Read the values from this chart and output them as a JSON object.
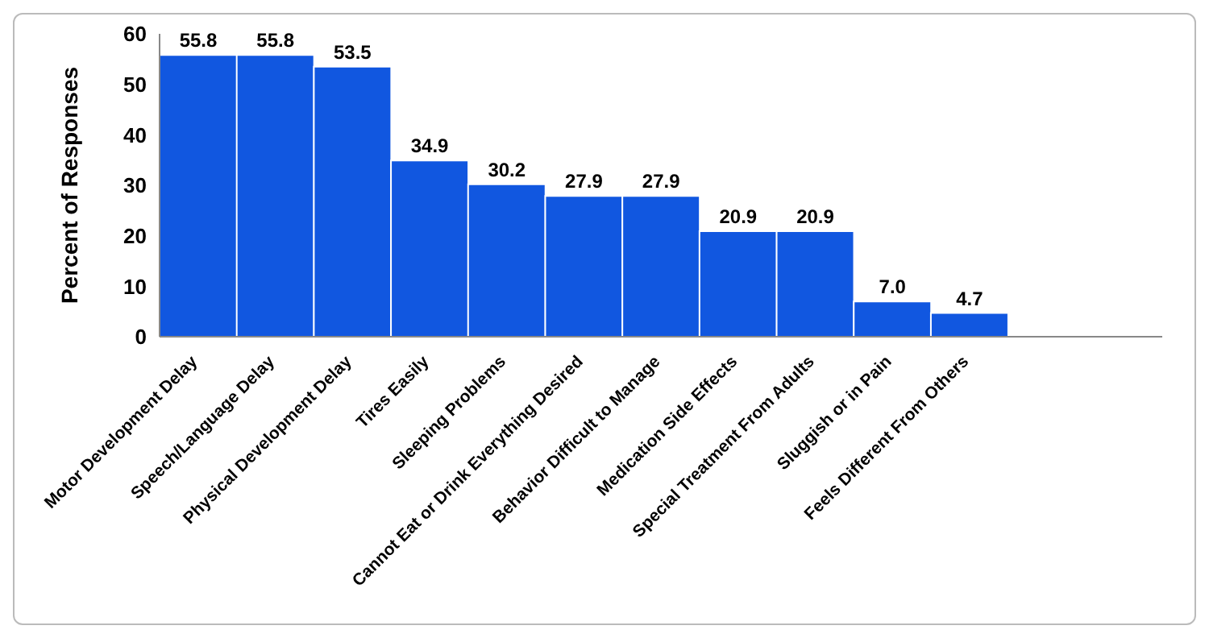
{
  "chart_data": {
    "type": "bar",
    "ylabel": "Percent of Responses",
    "categories": [
      "Motor Development Delay",
      "Speech/Language Delay",
      "Physical Development Delay",
      "Tires Easily",
      "Sleeping Problems",
      "Cannot Eat or Drink Everything Desired",
      "Behavior Difficult to Manage",
      "Medication Side Effects",
      "Special Treatment From Adults",
      "Sluggish or in Pain",
      "Feels Different From Others",
      null,
      null
    ],
    "values": [
      55.8,
      55.8,
      53.5,
      34.9,
      30.2,
      27.9,
      27.9,
      20.9,
      20.9,
      7.0,
      4.7,
      null,
      null
    ],
    "value_labels": [
      "55.8",
      "55.8",
      "53.5",
      "34.9",
      "30.2",
      "27.9",
      "27.9",
      "20.9",
      "20.9",
      "7.0",
      "4.7",
      null,
      null
    ],
    "color": "#1157e0",
    "ylim": [
      0,
      60
    ],
    "yticks": [
      0,
      10,
      20,
      30,
      40,
      50,
      60
    ],
    "grid": false,
    "legend": false
  }
}
